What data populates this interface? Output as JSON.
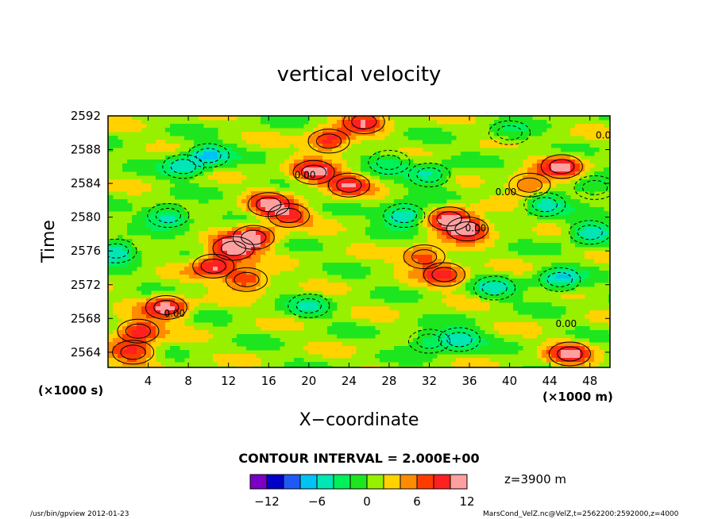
{
  "chart_data": {
    "type": "heatmap",
    "title": "vertical velocity",
    "xlabel": "X−coordinate",
    "ylabel": "Time",
    "x_unit": "(×1000 m)",
    "y_unit": "(×1000 s)",
    "x_ticks": [
      "4",
      "8",
      "12",
      "16",
      "20",
      "24",
      "28",
      "32",
      "36",
      "40",
      "44",
      "48"
    ],
    "y_ticks": [
      "2564",
      "2568",
      "2572",
      "2576",
      "2580",
      "2584",
      "2588",
      "2592"
    ],
    "xlim": [
      0,
      50
    ],
    "ylim": [
      2562.2,
      2592
    ],
    "contour_interval": "CONTOUR INTERVAL = 2.000E+00",
    "contour_label": "0.00",
    "level_note": "z=3900 m",
    "colorbar": {
      "colors": [
        "#7a00c4",
        "#0000c8",
        "#1e5af5",
        "#00c3f5",
        "#00e6b4",
        "#00f05a",
        "#1ee61e",
        "#96f000",
        "#ffd200",
        "#ff8c00",
        "#ff3c00",
        "#ff2020",
        "#ffa0a0"
      ],
      "tick_labels": [
        "−12",
        "−6",
        "0",
        "6",
        "12"
      ],
      "tick_values": [
        -12,
        -6,
        0,
        6,
        12
      ],
      "range": [
        -14,
        12
      ]
    },
    "features": [
      {
        "x": 3.0,
        "y": 2566.5,
        "value": 10
      },
      {
        "x": 5.8,
        "y": 2569.3,
        "value": 11
      },
      {
        "x": 2.5,
        "y": 2564.0,
        "value": 9
      },
      {
        "x": 10.5,
        "y": 2574.2,
        "value": 10
      },
      {
        "x": 12.5,
        "y": 2576.3,
        "value": 12
      },
      {
        "x": 14.5,
        "y": 2577.6,
        "value": 11
      },
      {
        "x": 13.8,
        "y": 2572.6,
        "value": 9
      },
      {
        "x": 16.0,
        "y": 2581.5,
        "value": 10
      },
      {
        "x": 18.0,
        "y": 2580.2,
        "value": 8
      },
      {
        "x": 20.5,
        "y": 2585.3,
        "value": 11
      },
      {
        "x": 22.0,
        "y": 2589.0,
        "value": 10
      },
      {
        "x": 24.0,
        "y": 2583.8,
        "value": 9
      },
      {
        "x": 25.5,
        "y": 2591.3,
        "value": 9
      },
      {
        "x": 34.0,
        "y": 2579.8,
        "value": 11
      },
      {
        "x": 35.8,
        "y": 2578.6,
        "value": 12
      },
      {
        "x": 31.5,
        "y": 2575.3,
        "value": 8
      },
      {
        "x": 33.5,
        "y": 2573.2,
        "value": 9
      },
      {
        "x": 45.2,
        "y": 2586.0,
        "value": 10
      },
      {
        "x": 42.0,
        "y": 2583.8,
        "value": 8
      },
      {
        "x": 46.0,
        "y": 2563.8,
        "value": 10
      },
      {
        "x": 6.0,
        "y": 2580.2,
        "value": -6
      },
      {
        "x": 10.0,
        "y": 2587.3,
        "value": -6
      },
      {
        "x": 7.5,
        "y": 2586.0,
        "value": -5
      },
      {
        "x": 0.8,
        "y": 2576.0,
        "value": -7
      },
      {
        "x": 29.5,
        "y": 2580.2,
        "value": -8
      },
      {
        "x": 32.0,
        "y": 2585.0,
        "value": -5
      },
      {
        "x": 43.5,
        "y": 2581.5,
        "value": -5
      },
      {
        "x": 48.0,
        "y": 2578.2,
        "value": -6
      },
      {
        "x": 45.0,
        "y": 2572.6,
        "value": -6
      },
      {
        "x": 35.0,
        "y": 2565.5,
        "value": -5
      },
      {
        "x": 32.0,
        "y": 2565.3,
        "value": -4
      },
      {
        "x": 38.5,
        "y": 2571.6,
        "value": -4
      },
      {
        "x": 20.0,
        "y": 2569.5,
        "value": -3
      },
      {
        "x": 28.0,
        "y": 2586.5,
        "value": -3
      },
      {
        "x": 48.5,
        "y": 2583.5,
        "value": -3
      },
      {
        "x": 40.0,
        "y": 2590.0,
        "value": -2
      }
    ]
  },
  "footer": {
    "left": "/usr/bin/gpview  2012-01-23",
    "right": "MarsCond_VelZ.nc@VelZ,t=2562200:2592000,z=4000"
  }
}
